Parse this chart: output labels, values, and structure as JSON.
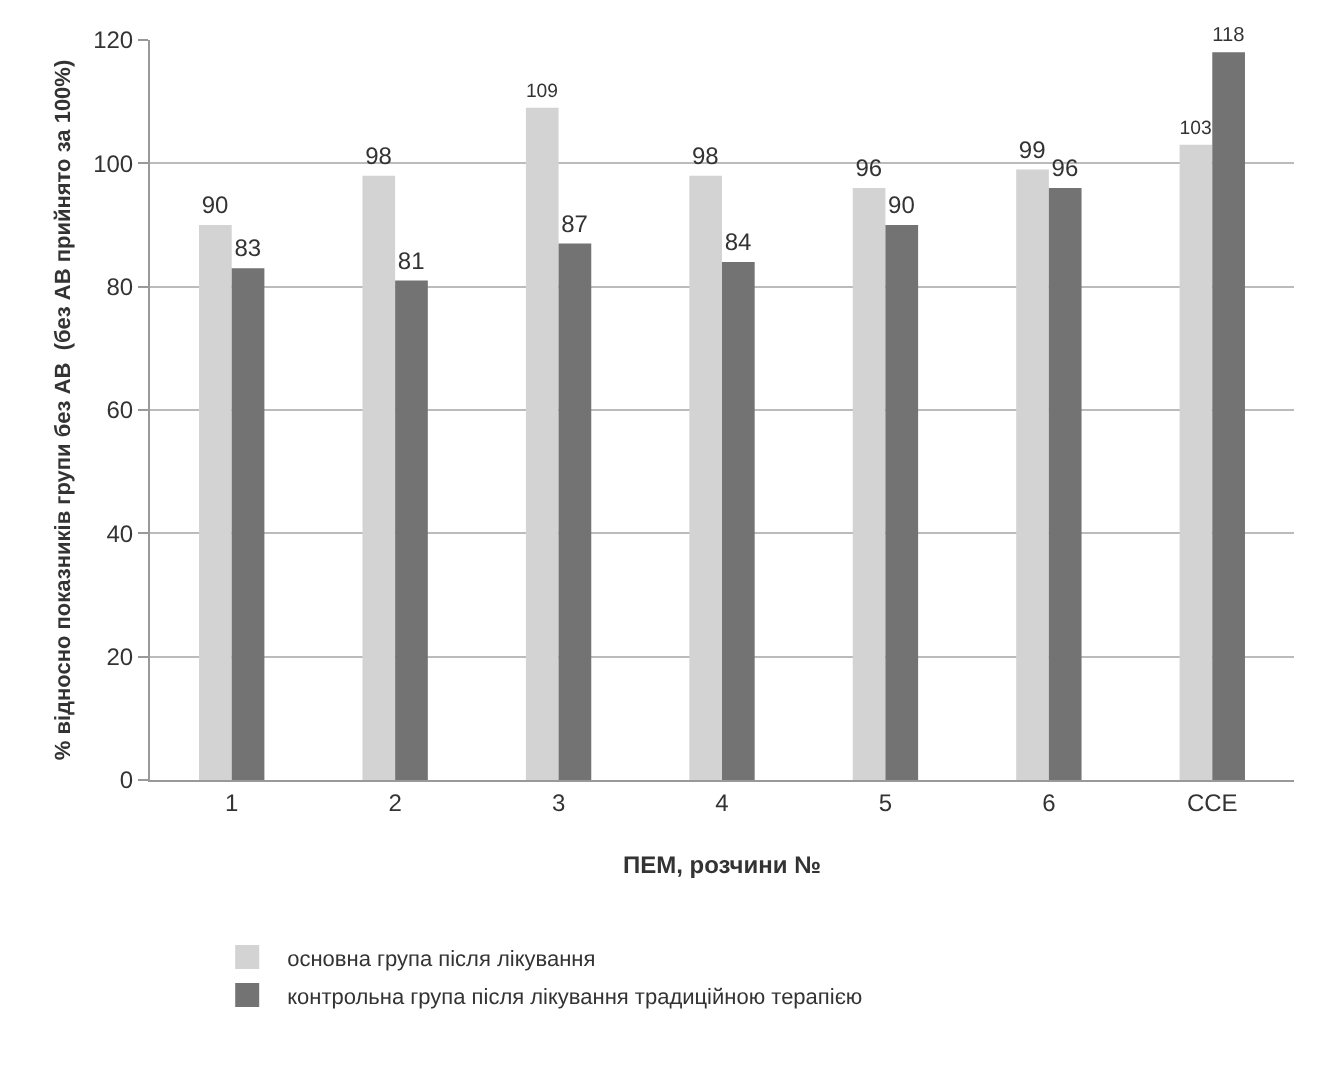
{
  "chart_data": {
    "type": "bar",
    "xlabel": "ПЕМ, розчини №",
    "ylabel": "% відносно показників групи без АВ  (без АВ прийнято за 100%)",
    "categories": [
      "1",
      "2",
      "3",
      "4",
      "5",
      "6",
      "ССЕ"
    ],
    "series": [
      {
        "name": "основна група після лікування",
        "color": "#d3d3d3",
        "values": [
          90,
          98,
          109,
          98,
          96,
          99,
          103
        ]
      },
      {
        "name": "контрольна група після лікування традиційною терапією",
        "color": "#737373",
        "values": [
          83,
          81,
          87,
          84,
          90,
          96,
          118
        ]
      }
    ],
    "ylim": [
      0,
      120
    ],
    "yticks": [
      0,
      20,
      40,
      60,
      80,
      100,
      120
    ],
    "grid": "y",
    "legend": "bottom",
    "data_labels": true
  }
}
